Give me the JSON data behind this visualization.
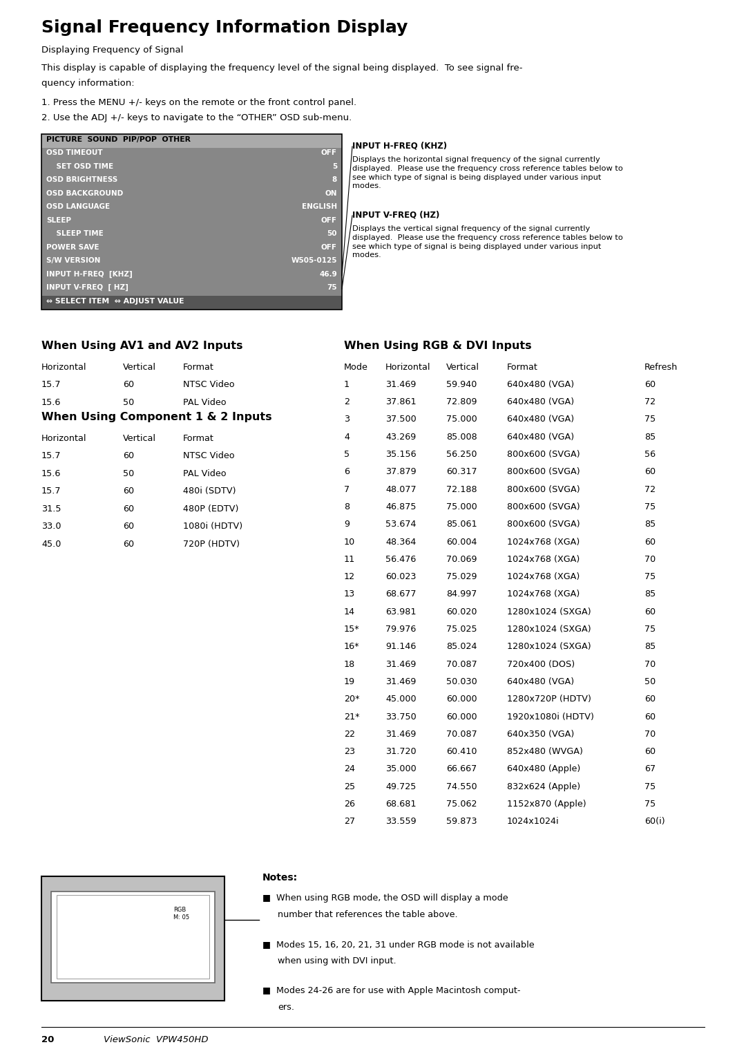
{
  "title": "Signal Frequency Information Display",
  "subtitle": "Displaying Frequency of Signal",
  "intro_line1": "This display is capable of displaying the frequency level of the signal being displayed.  To see signal fre-",
  "intro_line2": "quency information:",
  "step1": "1. Press the MENU +/- keys on the remote or the front control panel.",
  "step2": "2. Use the ADJ +/- keys to navigate to the “OTHER” OSD sub-menu.",
  "osd_header": "PICTURE  SOUND  PIP/POP  OTHER",
  "osd_menu_items": [
    [
      "OSD TIMEOUT",
      "OFF"
    ],
    [
      "    SET OSD TIME",
      "5"
    ],
    [
      "OSD BRIGHTNESS",
      "8"
    ],
    [
      "OSD BACKGROUND",
      "ON"
    ],
    [
      "OSD LANGUAGE",
      "ENGLISH"
    ],
    [
      "SLEEP",
      "OFF"
    ],
    [
      "    SLEEP TIME",
      "50"
    ],
    [
      "POWER SAVE",
      "OFF"
    ],
    [
      "S/W VERSION",
      "W505-0125"
    ],
    [
      "INPUT H-FREQ  [KHZ]",
      "46.9"
    ],
    [
      "INPUT V-FREQ  [ HZ]",
      "75"
    ]
  ],
  "osd_footer": "⇔ SELECT ITEM  ⇔ ADJUST VALUE",
  "input_h_freq_label": "INPUT H-FREQ (KHZ)",
  "input_h_freq_desc": "Displays the horizontal signal frequency of the signal currently\ndisplayed.  Please use the frequency cross reference tables below to\nsee which type of signal is being displayed under various input\nmodes.",
  "input_v_freq_label": "INPUT V-FREQ (HZ)",
  "input_v_freq_desc": "Displays the vertical signal frequency of the signal currently\ndisplayed.  Please use the frequency cross reference tables below to\nsee which type of signal is being displayed under various input\nmodes.",
  "av_title": "When Using AV1 and AV2 Inputs",
  "av_header": [
    "Horizontal",
    "Vertical",
    "Format"
  ],
  "av_data": [
    [
      "15.7",
      "60",
      "NTSC Video"
    ],
    [
      "15.6",
      "50",
      "PAL Video"
    ]
  ],
  "comp_title": "When Using Component 1 & 2 Inputs",
  "comp_header": [
    "Horizontal",
    "Vertical",
    "Format"
  ],
  "comp_data": [
    [
      "15.7",
      "60",
      "NTSC Video"
    ],
    [
      "15.6",
      "50",
      "PAL Video"
    ],
    [
      "15.7",
      "60",
      "480i (SDTV)"
    ],
    [
      "31.5",
      "60",
      "480P (EDTV)"
    ],
    [
      "33.0",
      "60",
      "1080i (HDTV)"
    ],
    [
      "45.0",
      "60",
      "720P (HDTV)"
    ]
  ],
  "rgb_title": "When Using RGB & DVI Inputs",
  "rgb_header": [
    "Mode",
    "Horizontal",
    "Vertical",
    "Format",
    "Refresh"
  ],
  "rgb_data": [
    [
      "1",
      "31.469",
      "59.940",
      "640x480 (VGA)",
      "60"
    ],
    [
      "2",
      "37.861",
      "72.809",
      "640x480 (VGA)",
      "72"
    ],
    [
      "3",
      "37.500",
      "75.000",
      "640x480 (VGA)",
      "75"
    ],
    [
      "4",
      "43.269",
      "85.008",
      "640x480 (VGA)",
      "85"
    ],
    [
      "5",
      "35.156",
      "56.250",
      "800x600 (SVGA)",
      "56"
    ],
    [
      "6",
      "37.879",
      "60.317",
      "800x600 (SVGA)",
      "60"
    ],
    [
      "7",
      "48.077",
      "72.188",
      "800x600 (SVGA)",
      "72"
    ],
    [
      "8",
      "46.875",
      "75.000",
      "800x600 (SVGA)",
      "75"
    ],
    [
      "9",
      "53.674",
      "85.061",
      "800x600 (SVGA)",
      "85"
    ],
    [
      "10",
      "48.364",
      "60.004",
      "1024x768 (XGA)",
      "60"
    ],
    [
      "11",
      "56.476",
      "70.069",
      "1024x768 (XGA)",
      "70"
    ],
    [
      "12",
      "60.023",
      "75.029",
      "1024x768 (XGA)",
      "75"
    ],
    [
      "13",
      "68.677",
      "84.997",
      "1024x768 (XGA)",
      "85"
    ],
    [
      "14",
      "63.981",
      "60.020",
      "1280x1024 (SXGA)",
      "60"
    ],
    [
      "15*",
      "79.976",
      "75.025",
      "1280x1024 (SXGA)",
      "75"
    ],
    [
      "16*",
      "91.146",
      "85.024",
      "1280x1024 (SXGA)",
      "85"
    ],
    [
      "18",
      "31.469",
      "70.087",
      "720x400 (DOS)",
      "70"
    ],
    [
      "19",
      "31.469",
      "50.030",
      "640x480 (VGA)",
      "50"
    ],
    [
      "20*",
      "45.000",
      "60.000",
      "1280x720P (HDTV)",
      "60"
    ],
    [
      "21*",
      "33.750",
      "60.000",
      "1920x1080i (HDTV)",
      "60"
    ],
    [
      "22",
      "31.469",
      "70.087",
      "640x350 (VGA)",
      "70"
    ],
    [
      "23",
      "31.720",
      "60.410",
      "852x480 (WVGA)",
      "60"
    ],
    [
      "24",
      "35.000",
      "66.667",
      "640x480 (Apple)",
      "67"
    ],
    [
      "25",
      "49.725",
      "74.550",
      "832x624 (Apple)",
      "75"
    ],
    [
      "26",
      "68.681",
      "75.062",
      "1152x870 (Apple)",
      "75"
    ],
    [
      "27",
      "33.559",
      "59.873",
      "1024x1024i",
      "60(i)"
    ]
  ],
  "notes_title": "Notes:",
  "notes": [
    "When using RGB mode, the OSD will display a mode\nnumber that references the table above.",
    "Modes 15, 16, 20, 21, 31 under RGB mode is not available\nwhen using with DVI input.",
    "Modes 24-26 are for use with Apple Macintosh comput-\ners."
  ],
  "footer_page": "20",
  "footer_model": "ViewSonic  VPW450HD"
}
